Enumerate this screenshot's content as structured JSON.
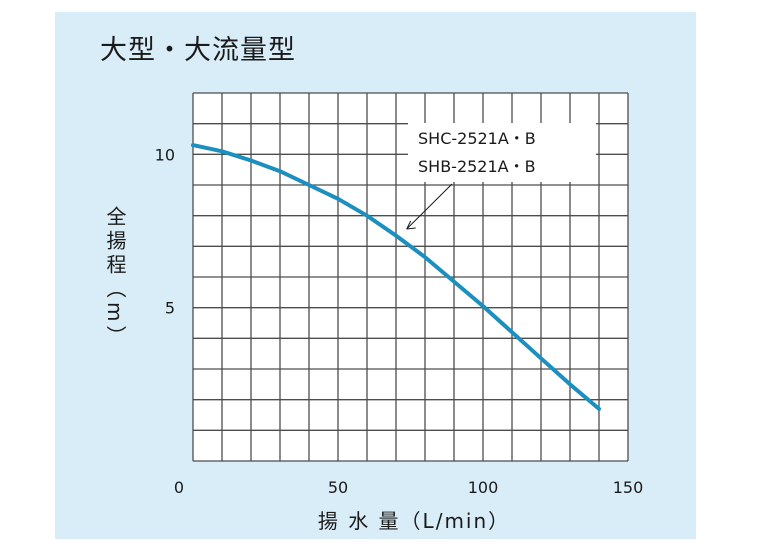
{
  "chart_data": {
    "type": "line",
    "title": "大型・大流量型",
    "xlabel": "揚 水 量（L/min）",
    "ylabel": "全揚程（m）",
    "xlim": [
      0,
      150
    ],
    "ylim": [
      0,
      12
    ],
    "x_ticks": [
      "0",
      "50",
      "100",
      "150"
    ],
    "y_ticks": [
      "5",
      "10"
    ],
    "grid": true,
    "series": [
      {
        "x": [
          0,
          10,
          20,
          30,
          40,
          50,
          60,
          70,
          80,
          90,
          100,
          110,
          120,
          130,
          140
        ],
        "y": [
          10.3,
          10.1,
          9.8,
          9.45,
          9.0,
          8.55,
          8.0,
          7.35,
          6.65,
          5.85,
          5.05,
          4.2,
          3.35,
          2.5,
          1.7
        ]
      }
    ],
    "annotation": {
      "lines": [
        "SHC-2521A・B",
        "SHB-2521A・B"
      ],
      "points_to": {
        "x": 73,
        "y": 7.5
      }
    },
    "line_color": "#1a8fc0",
    "grid_color": "#4d4d4d"
  }
}
